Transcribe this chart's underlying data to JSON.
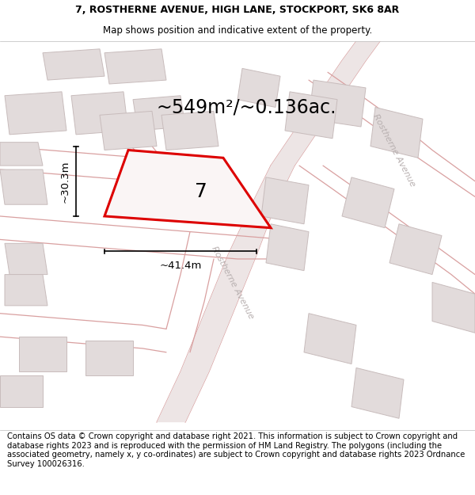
{
  "title_line1": "7, ROSTHERNE AVENUE, HIGH LANE, STOCKPORT, SK6 8AR",
  "title_line2": "Map shows position and indicative extent of the property.",
  "area_text": "~549m²/~0.136ac.",
  "label_number": "7",
  "dim_width": "~41.4m",
  "dim_height": "~30.3m",
  "street_label": "Rostherne Avenue",
  "footer_text": "Contains OS data © Crown copyright and database right 2021. This information is subject to Crown copyright and database rights 2023 and is reproduced with the permission of HM Land Registry. The polygons (including the associated geometry, namely x, y co-ordinates) are subject to Crown copyright and database rights 2023 Ordnance Survey 100026316.",
  "map_bg": "#f2eeee",
  "plot_color_fill": "#faf5f5",
  "plot_color_edge": "#dd0000",
  "road_color": "#d9a0a0",
  "building_fill": "#e2dbdb",
  "building_edge": "#c8bcbc",
  "title_fontsize": 9.0,
  "subtitle_fontsize": 8.5,
  "area_fontsize": 17,
  "dim_fontsize": 9.5,
  "label_fontsize": 18,
  "footer_fontsize": 7.2,
  "street_fontsize": 8.0
}
